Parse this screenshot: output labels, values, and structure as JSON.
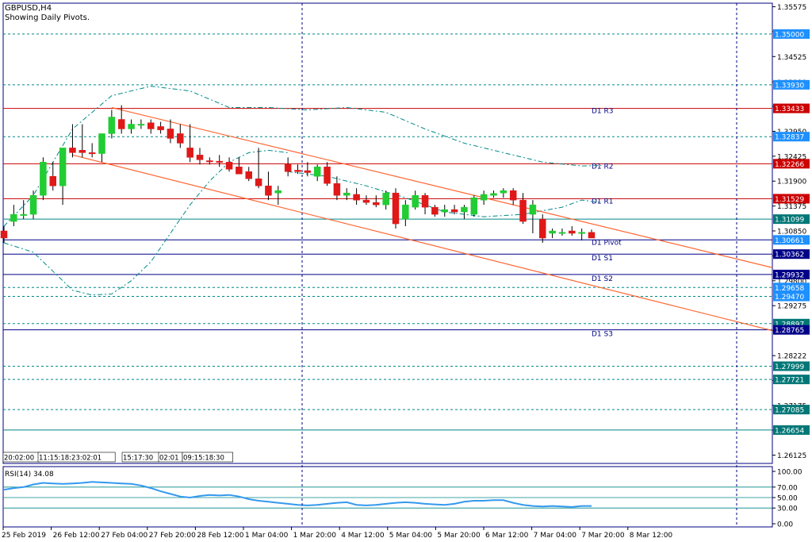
{
  "header": {
    "symbol": "GBPUSD,H4",
    "subtitle": "Showing Daily Pivots."
  },
  "rsi_label": "RSI(14) 34.08",
  "time_labels_overlay": [
    "20:02:00",
    "11:15:18:23:02:01",
    "15:17:30",
    "02:01",
    "09:15:18:30"
  ],
  "colors": {
    "bull": "#22cc33",
    "bear": "#e01818",
    "pivot_line": "#cc0000",
    "support_line": "#000088",
    "level_line": "#008888",
    "channel": "#ff6633",
    "ma": "#008888",
    "rsi": "#3399ee",
    "label_bg_blue": "#1e90ff",
    "label_bg_red": "#cc0000",
    "label_bg_navy": "#000088",
    "label_bg_teal": "#007777"
  },
  "chart_data": [
    {
      "type": "candlestick",
      "title": "GBPUSD,H4",
      "subtitle": "Showing Daily Pivots.",
      "ylim": [
        1.2595,
        1.3565
      ],
      "y_ticks": [
        "1.35575",
        "1.35050",
        "1.34525",
        "1.33990",
        "1.33475",
        "1.32950",
        "1.32425",
        "1.31900",
        "1.31375",
        "1.30850",
        "1.30325",
        "1.29800",
        "1.29275",
        "1.28750",
        "1.28222",
        "1.27700",
        "1.27175",
        "1.26650",
        "1.26125"
      ],
      "x_labels": [
        "25 Feb 2019",
        "26 Feb 12:00",
        "27 Feb 04:00",
        "27 Feb 20:00",
        "28 Feb 12:00",
        "1 Mar 04:00",
        "1 Mar 20:00",
        "4 Mar 12:00",
        "5 Mar 04:00",
        "5 Mar 20:00",
        "6 Mar 12:00",
        "7 Mar 04:00",
        "7 Mar 20:00",
        "8 Mar 12:00"
      ],
      "candles": [
        [
          1.3085,
          1.3095,
          1.306,
          1.307
        ],
        [
          1.3105,
          1.314,
          1.3095,
          1.312
        ],
        [
          1.312,
          1.315,
          1.311,
          1.312
        ],
        [
          1.312,
          1.317,
          1.311,
          1.316
        ],
        [
          1.316,
          1.324,
          1.315,
          1.323
        ],
        [
          1.32,
          1.323,
          1.317,
          1.318
        ],
        [
          1.318,
          1.326,
          1.314,
          1.326
        ],
        [
          1.326,
          1.331,
          1.324,
          1.325
        ],
        [
          1.3255,
          1.331,
          1.324,
          1.325
        ],
        [
          1.325,
          1.327,
          1.324,
          1.3248
        ],
        [
          1.3248,
          1.329,
          1.323,
          1.329
        ],
        [
          1.329,
          1.334,
          1.328,
          1.3325
        ],
        [
          1.332,
          1.335,
          1.329,
          1.33
        ],
        [
          1.33,
          1.332,
          1.329,
          1.331
        ],
        [
          1.331,
          1.332,
          1.33,
          1.331
        ],
        [
          1.3313,
          1.332,
          1.329,
          1.33
        ],
        [
          1.3305,
          1.3315,
          1.329,
          1.3298
        ],
        [
          1.33,
          1.332,
          1.327,
          1.328
        ],
        [
          1.329,
          1.331,
          1.326,
          1.327
        ],
        [
          1.326,
          1.331,
          1.323,
          1.324
        ],
        [
          1.3245,
          1.326,
          1.3225,
          1.3235
        ],
        [
          1.3233,
          1.324,
          1.3225,
          1.3232
        ],
        [
          1.3232,
          1.3245,
          1.322,
          1.323
        ],
        [
          1.323,
          1.324,
          1.321,
          1.3215
        ],
        [
          1.322,
          1.324,
          1.3205,
          1.3205
        ],
        [
          1.321,
          1.322,
          1.319,
          1.3195
        ],
        [
          1.3195,
          1.326,
          1.3175,
          1.318
        ],
        [
          1.318,
          1.321,
          1.315,
          1.316
        ],
        [
          1.3165,
          1.318,
          1.314,
          1.317
        ],
        [
          1.3225,
          1.324,
          1.32,
          1.321
        ],
        [
          1.3213,
          1.3225,
          1.3205,
          1.321
        ],
        [
          1.3212,
          1.323,
          1.32,
          1.3208
        ],
        [
          1.32,
          1.3225,
          1.319,
          1.322
        ],
        [
          1.322,
          1.323,
          1.318,
          1.3185
        ],
        [
          1.3185,
          1.32,
          1.315,
          1.316
        ],
        [
          1.316,
          1.3175,
          1.315,
          1.3165
        ],
        [
          1.3162,
          1.3175,
          1.314,
          1.315
        ],
        [
          1.315,
          1.316,
          1.314,
          1.3145
        ],
        [
          1.3145,
          1.316,
          1.3135,
          1.314
        ],
        [
          1.314,
          1.317,
          1.313,
          1.3165
        ],
        [
          1.3165,
          1.3175,
          1.309,
          1.31
        ],
        [
          1.311,
          1.315,
          1.3095,
          1.314
        ],
        [
          1.3135,
          1.317,
          1.313,
          1.316
        ],
        [
          1.316,
          1.3165,
          1.312,
          1.3135
        ],
        [
          1.3135,
          1.314,
          1.3115,
          1.312
        ],
        [
          1.3125,
          1.314,
          1.3115,
          1.313
        ],
        [
          1.313,
          1.314,
          1.312,
          1.3125
        ],
        [
          1.3125,
          1.314,
          1.311,
          1.3135
        ],
        [
          1.312,
          1.316,
          1.3115,
          1.3155
        ],
        [
          1.315,
          1.317,
          1.314,
          1.3162
        ],
        [
          1.316,
          1.317,
          1.3155,
          1.3164
        ],
        [
          1.3165,
          1.3175,
          1.3155,
          1.317
        ],
        [
          1.317,
          1.3175,
          1.314,
          1.315
        ],
        [
          1.315,
          1.3165,
          1.31,
          1.3105
        ],
        [
          1.312,
          1.315,
          1.308,
          1.314
        ],
        [
          1.311,
          1.312,
          1.306,
          1.307
        ],
        [
          1.308,
          1.309,
          1.307,
          1.3085
        ],
        [
          1.308,
          1.309,
          1.3075,
          1.3082
        ],
        [
          1.3085,
          1.3095,
          1.3075,
          1.308
        ],
        [
          1.308,
          1.309,
          1.3065,
          1.3082
        ],
        [
          1.3082,
          1.3088,
          1.307,
          1.307
        ]
      ],
      "levels": [
        {
          "value": 1.35,
          "label": "1.35000",
          "style": "dashed",
          "kind": "level"
        },
        {
          "value": 1.3393,
          "label": "1.33930",
          "style": "dashed",
          "kind": "level"
        },
        {
          "value": 1.33433,
          "label": "1.33433",
          "style": "solid",
          "kind": "pivot",
          "name": "D1 R3"
        },
        {
          "value": 1.32837,
          "label": "1.32837",
          "style": "dashed",
          "kind": "level"
        },
        {
          "value": 1.32266,
          "label": "1.32266",
          "style": "solid",
          "kind": "pivot",
          "name": "D1 R2"
        },
        {
          "value": 1.31529,
          "label": "1.31529",
          "style": "solid",
          "kind": "pivot",
          "name": "D1 R1"
        },
        {
          "value": 1.31099,
          "label": "1.31099",
          "style": "solid",
          "kind": "teal"
        },
        {
          "value": 1.30661,
          "label": "1.30661",
          "style": "solid",
          "kind": "current",
          "name": "D1 Pivot"
        },
        {
          "value": 1.30362,
          "label": "1.30362",
          "style": "solid",
          "kind": "support",
          "name": "D1 S1"
        },
        {
          "value": 1.29932,
          "label": "1.29932",
          "style": "solid",
          "kind": "support",
          "name": "D1 S2"
        },
        {
          "value": 1.29658,
          "label": "1.29658",
          "style": "dashed",
          "kind": "level"
        },
        {
          "value": 1.2947,
          "label": "1.29470",
          "style": "dashed",
          "kind": "level"
        },
        {
          "value": 1.28897,
          "label": "1.28897",
          "style": "dashed",
          "kind": "teal"
        },
        {
          "value": 1.28765,
          "label": "1.28765",
          "style": "solid",
          "kind": "support",
          "name": "D1 S3"
        },
        {
          "value": 1.27999,
          "label": "1.27999",
          "style": "dashed",
          "kind": "teal"
        },
        {
          "value": 1.27721,
          "label": "1.27721",
          "style": "dashed",
          "kind": "teal"
        },
        {
          "value": 1.27085,
          "label": "1.27085",
          "style": "dashed",
          "kind": "teal"
        },
        {
          "value": 1.26654,
          "label": "1.26654",
          "style": "solid",
          "kind": "teal"
        }
      ],
      "channel_upper": [
        [
          11,
          1.3345
        ],
        [
          63,
          1.3085
        ]
      ],
      "channel_lower": [
        [
          7,
          1.3245
        ],
        [
          63,
          1.2955
        ]
      ],
      "ma_upper": [
        [
          0,
          1.3095
        ],
        [
          3,
          1.316
        ],
        [
          7,
          1.33
        ],
        [
          11,
          1.337
        ],
        [
          15,
          1.339
        ],
        [
          19,
          1.338
        ],
        [
          23,
          1.3345
        ],
        [
          27,
          1.3345
        ],
        [
          31,
          1.334
        ],
        [
          35,
          1.3345
        ],
        [
          39,
          1.3335
        ],
        [
          43,
          1.33
        ],
        [
          47,
          1.327
        ],
        [
          51,
          1.325
        ],
        [
          55,
          1.323
        ],
        [
          59,
          1.3222
        ],
        [
          61,
          1.3223
        ]
      ],
      "ma_lower": [
        [
          0,
          1.306
        ],
        [
          3,
          1.304
        ],
        [
          5,
          1.3
        ],
        [
          7,
          1.296
        ],
        [
          9,
          1.295
        ],
        [
          11,
          1.2952
        ],
        [
          13,
          1.298
        ],
        [
          15,
          1.302
        ],
        [
          17,
          1.308
        ],
        [
          19,
          1.314
        ],
        [
          21,
          1.319
        ],
        [
          23,
          1.323
        ],
        [
          25,
          1.325
        ],
        [
          27,
          1.3255
        ],
        [
          29,
          1.325
        ]
      ],
      "ma_mid": [
        [
          29,
          1.321
        ],
        [
          33,
          1.32
        ],
        [
          37,
          1.318
        ],
        [
          41,
          1.3155
        ],
        [
          45,
          1.3125
        ],
        [
          49,
          1.3115
        ],
        [
          53,
          1.312
        ],
        [
          57,
          1.3135
        ],
        [
          59,
          1.315
        ],
        [
          61,
          1.3145
        ]
      ]
    },
    {
      "type": "line",
      "title": "RSI(14) 34.08",
      "ylim": [
        0,
        100
      ],
      "y_ticks": [
        "100.00",
        "70.00",
        "50.00",
        "30.00",
        "0.00"
      ],
      "levels": [
        70,
        50,
        30
      ],
      "values": [
        65,
        68,
        70,
        75,
        78,
        77,
        76,
        77,
        78,
        80,
        79,
        78,
        77,
        76,
        73,
        68,
        62,
        57,
        52,
        50,
        53,
        55,
        54,
        55,
        52,
        47,
        44,
        42,
        40,
        38,
        36,
        35,
        36,
        38,
        40,
        41,
        36,
        35,
        36,
        38,
        40,
        41,
        40,
        38,
        37,
        36,
        38,
        42,
        44,
        44,
        45,
        45,
        40,
        36,
        34,
        33,
        34,
        33,
        32,
        34,
        34
      ]
    }
  ]
}
